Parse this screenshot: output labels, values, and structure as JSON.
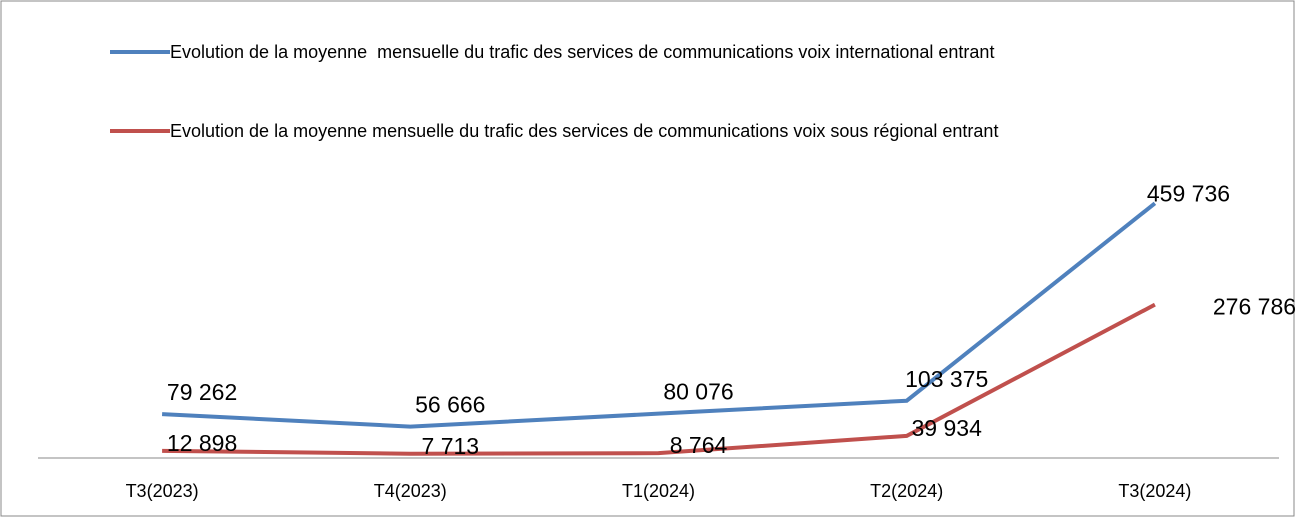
{
  "chart_data": {
    "type": "line",
    "categories": [
      "T3(2023)",
      "T4(2023)",
      "T1(2024)",
      "T2(2024)",
      "T3(2024)"
    ],
    "series": [
      {
        "name": "Evolution de la moyenne  mensuelle du trafic des services de communications voix international entrant",
        "color": "#4f81bd",
        "values": [
          79262,
          56666,
          80076,
          103375,
          459736
        ],
        "value_labels": [
          "79 262",
          "56 666",
          "80 076",
          "103 375",
          "459 736"
        ]
      },
      {
        "name": "Evolution de la moyenne mensuelle du trafic des services de communications voix sous régional entrant",
        "color": "#c0504d",
        "values": [
          12898,
          7713,
          8764,
          39934,
          276786
        ],
        "value_labels": [
          "12 898",
          "7 713",
          "8 764",
          "39 934",
          "276 786"
        ]
      }
    ],
    "ylim": [
      0,
      500000
    ]
  }
}
